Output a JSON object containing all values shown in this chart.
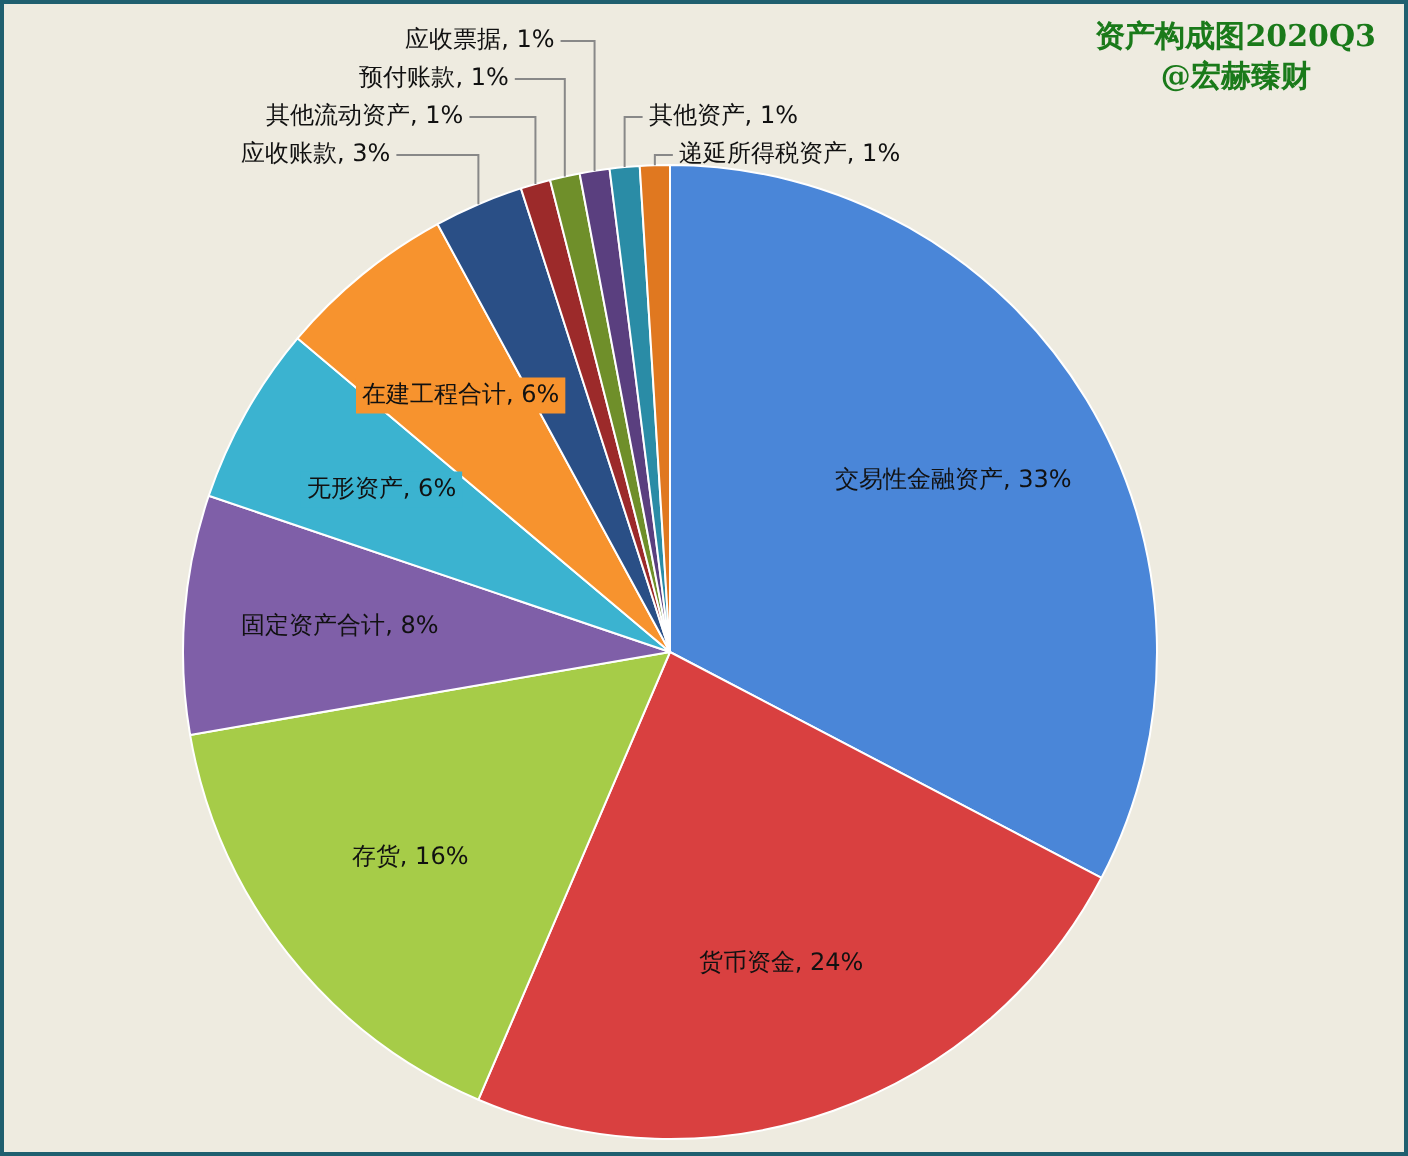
{
  "chart_data": {
    "type": "pie",
    "title": "资产构成图2020Q3",
    "subtitle": "@宏赫臻财",
    "categories": [
      "交易性金融资产",
      "货币资金",
      "存货",
      "固定资产合计",
      "无形资产",
      "在建工程合计",
      "应收账款",
      "其他流动资产",
      "预付账款",
      "应收票据",
      "其他资产",
      "递延所得税资产"
    ],
    "values": [
      33,
      24,
      16,
      8,
      6,
      6,
      3,
      1,
      1,
      1,
      1,
      1
    ],
    "value_labels": [
      "33%",
      "24%",
      "16%",
      "8%",
      "6%",
      "6%",
      "3%",
      "1%",
      "1%",
      "1%",
      "1%",
      "1%"
    ],
    "colors": [
      "#4a86d8",
      "#d94040",
      "#a6cc48",
      "#7f5fa8",
      "#3bb3d0",
      "#f7932e",
      "#2a4f86",
      "#9c2a2a",
      "#6f8f2a",
      "#5a3f7f",
      "#2a8ca6",
      "#e07820"
    ],
    "legend": false
  }
}
